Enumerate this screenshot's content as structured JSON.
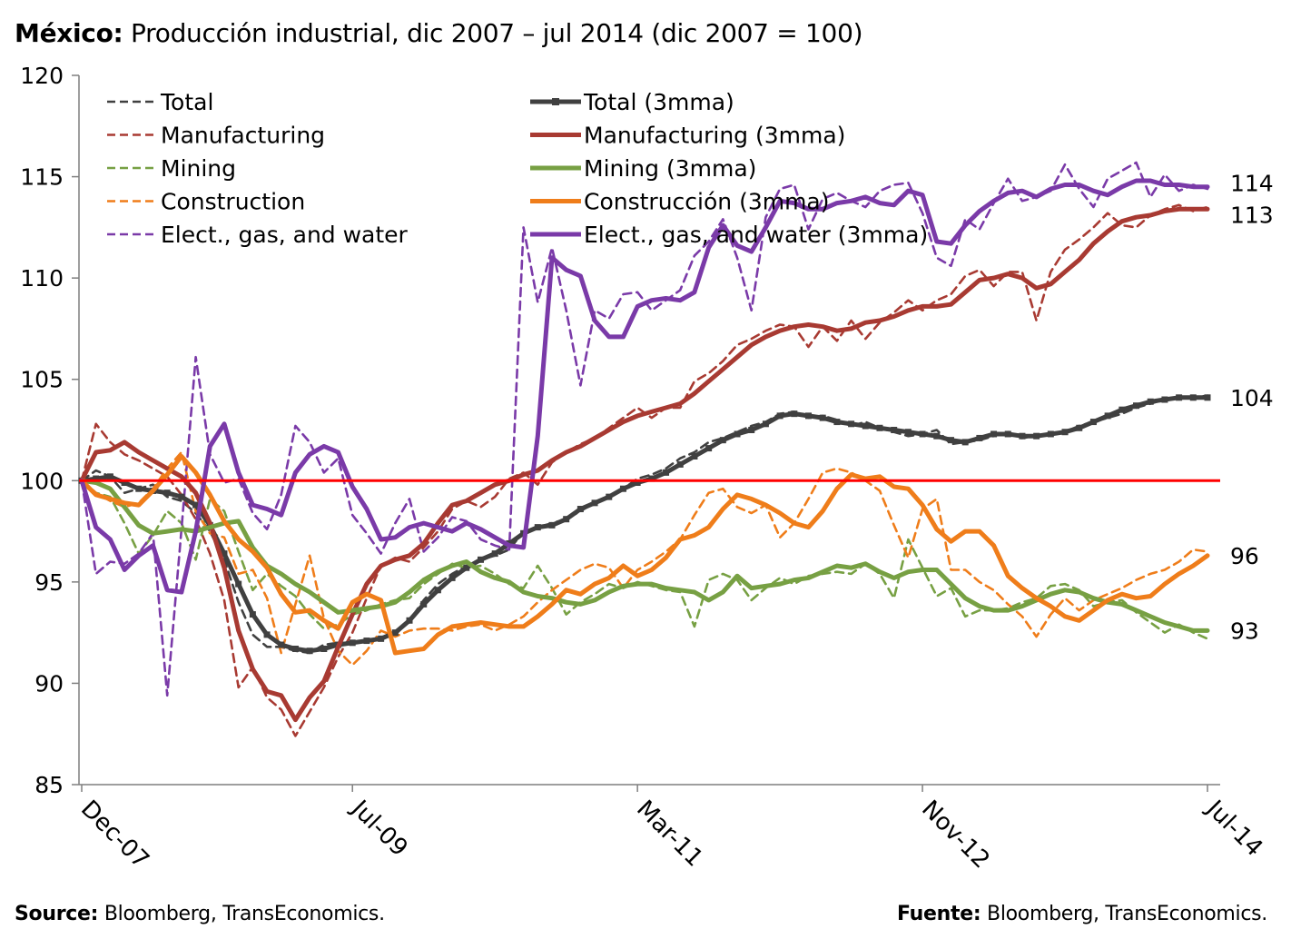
{
  "header": {
    "title_bold": "México:",
    "title_rest": " Producción industrial, dic 2007 – jul 2014 (dic 2007 = 100)"
  },
  "footer": {
    "source_bold": "Source:",
    "source_rest": " Bloomberg, TransEconomics.",
    "fuente_bold": "Fuente:",
    "fuente_rest": " Bloomberg, TransEconomics."
  },
  "chart_data": {
    "type": "line",
    "title": "México: Producción industrial, dic 2007 – jul 2014 (dic 2007 = 100)",
    "xlabel": "",
    "ylabel": "",
    "x_ticks": [
      "Dec-07",
      "Jul-09",
      "Mar-11",
      "Nov-12",
      "Jul-14"
    ],
    "x_tick_index": [
      0,
      19,
      39,
      59,
      79
    ],
    "n_points": 80,
    "ylim": [
      85,
      120
    ],
    "y_ticks": [
      85,
      90,
      95,
      100,
      105,
      110,
      115,
      120
    ],
    "grid": false,
    "legend_position": "top-left",
    "reference_line": {
      "value": 100,
      "color": "#ff0000"
    },
    "end_labels": [
      "114",
      "113",
      "104",
      "96",
      "93"
    ],
    "colors": {
      "total": "#404040",
      "manufacturing": "#a83a32",
      "mining": "#77a043",
      "construction": "#ef7d1a",
      "electricity": "#7a3aa8",
      "axis": "#7f7f7f"
    },
    "series": [
      {
        "name": "Total",
        "style": "dashed",
        "color": "#404040",
        "values": [
          100.0,
          100.5,
          100.2,
          99.4,
          99.6,
          99.8,
          99.2,
          99.0,
          98.4,
          97.5,
          96.1,
          94.0,
          92.4,
          91.8,
          91.8,
          91.6,
          91.5,
          91.9,
          92.0,
          92.0,
          92.1,
          92.2,
          92.4,
          93.1,
          94.1,
          94.9,
          95.4,
          95.8,
          96.1,
          96.3,
          96.6,
          97.5,
          97.7,
          97.9,
          98.1,
          98.5,
          98.9,
          99.2,
          99.6,
          100.1,
          100.3,
          100.6,
          101.1,
          101.4,
          101.9,
          102.1,
          102.4,
          102.7,
          102.9,
          103.3,
          103.4,
          103.1,
          103.2,
          103.0,
          102.7,
          102.9,
          102.6,
          102.4,
          102.2,
          102.3,
          102.5,
          101.8,
          101.9,
          102.0,
          102.2,
          102.4,
          102.1,
          102.2,
          102.3,
          102.4,
          102.7,
          102.9,
          103.1,
          103.3,
          103.6,
          103.8,
          104.0,
          104.1,
          104.1,
          104.2
        ]
      },
      {
        "name": "Total (3mma)",
        "style": "solid-marker",
        "color": "#404040",
        "values": [
          100.0,
          100.1,
          100.2,
          99.9,
          99.6,
          99.5,
          99.4,
          99.2,
          98.8,
          97.8,
          96.4,
          94.9,
          93.4,
          92.4,
          91.9,
          91.7,
          91.6,
          91.7,
          91.9,
          92.0,
          92.1,
          92.2,
          92.5,
          93.1,
          93.9,
          94.6,
          95.2,
          95.7,
          96.1,
          96.4,
          96.9,
          97.4,
          97.7,
          97.8,
          98.1,
          98.6,
          98.9,
          99.2,
          99.6,
          99.9,
          100.1,
          100.4,
          100.8,
          101.2,
          101.6,
          102.0,
          102.3,
          102.5,
          102.8,
          103.2,
          103.3,
          103.2,
          103.1,
          102.9,
          102.8,
          102.7,
          102.6,
          102.5,
          102.4,
          102.3,
          102.2,
          102.0,
          101.9,
          102.1,
          102.3,
          102.3,
          102.2,
          102.2,
          102.3,
          102.4,
          102.6,
          102.9,
          103.2,
          103.5,
          103.7,
          103.9,
          104.0,
          104.1,
          104.1,
          104.1
        ]
      },
      {
        "name": "Manufacturing",
        "style": "dashed",
        "color": "#a83a32",
        "values": [
          100.0,
          102.8,
          101.9,
          101.3,
          101.0,
          100.6,
          100.2,
          99.3,
          98.1,
          96.4,
          94.1,
          89.8,
          90.8,
          89.3,
          88.7,
          87.4,
          88.6,
          89.8,
          91.3,
          92.5,
          94.2,
          95.8,
          96.2,
          96.0,
          96.7,
          97.5,
          98.6,
          99.0,
          98.7,
          99.2,
          100.1,
          100.4,
          99.8,
          100.9,
          101.4,
          101.8,
          102.1,
          102.6,
          103.1,
          103.6,
          103.1,
          103.6,
          103.6,
          104.9,
          105.3,
          105.9,
          106.7,
          107.0,
          107.4,
          107.7,
          107.6,
          106.6,
          107.6,
          106.9,
          107.9,
          107.0,
          107.8,
          108.3,
          108.9,
          108.4,
          108.9,
          109.2,
          110.1,
          110.4,
          109.6,
          110.3,
          110.3,
          107.9,
          110.3,
          111.4,
          111.9,
          112.5,
          113.2,
          112.6,
          112.5,
          113.1,
          113.4,
          113.6,
          113.3,
          113.5
        ]
      },
      {
        "name": "Manufacturing (3mma)",
        "style": "solid",
        "color": "#a83a32",
        "values": [
          100.0,
          101.4,
          101.5,
          101.9,
          101.4,
          101.0,
          100.6,
          100.2,
          99.4,
          97.9,
          95.7,
          92.6,
          90.7,
          89.6,
          89.4,
          88.2,
          89.3,
          90.1,
          91.8,
          93.4,
          94.9,
          95.8,
          96.1,
          96.3,
          96.9,
          97.9,
          98.8,
          99.0,
          99.4,
          99.8,
          100.0,
          100.3,
          100.5,
          101.0,
          101.4,
          101.7,
          102.1,
          102.5,
          102.9,
          103.2,
          103.4,
          103.6,
          103.8,
          104.3,
          104.9,
          105.5,
          106.1,
          106.7,
          107.1,
          107.4,
          107.6,
          107.7,
          107.6,
          107.4,
          107.5,
          107.8,
          107.9,
          108.1,
          108.4,
          108.6,
          108.6,
          108.7,
          109.3,
          109.9,
          110.0,
          110.2,
          110.0,
          109.5,
          109.7,
          110.3,
          110.9,
          111.7,
          112.3,
          112.8,
          113.0,
          113.1,
          113.3,
          113.4,
          113.4,
          113.4
        ]
      },
      {
        "name": "Mining",
        "style": "dashed",
        "color": "#77a043",
        "values": [
          100.0,
          99.4,
          99.2,
          97.9,
          96.4,
          97.3,
          98.5,
          97.9,
          96.1,
          99.1,
          98.5,
          96.5,
          94.6,
          95.4,
          94.8,
          94.3,
          93.4,
          92.7,
          92.9,
          93.4,
          93.6,
          93.9,
          94.1,
          94.2,
          94.9,
          95.4,
          95.9,
          95.7,
          95.8,
          95.4,
          94.9,
          94.7,
          95.8,
          94.7,
          93.4,
          94.0,
          94.4,
          94.9,
          94.7,
          95.0,
          94.8,
          94.6,
          94.5,
          92.8,
          95.1,
          95.4,
          95.1,
          94.1,
          94.7,
          95.2,
          94.9,
          95.3,
          95.4,
          95.5,
          95.4,
          95.9,
          95.4,
          94.2,
          97.1,
          95.7,
          94.3,
          94.7,
          93.3,
          93.6,
          93.6,
          93.7,
          94.0,
          94.2,
          94.8,
          94.9,
          94.6,
          93.8,
          94.0,
          94.1,
          93.5,
          93.0,
          92.5,
          92.9,
          92.5,
          92.2
        ]
      },
      {
        "name": "Mining (3mma)",
        "style": "solid",
        "color": "#77a043",
        "values": [
          100.0,
          99.9,
          99.6,
          98.7,
          97.8,
          97.4,
          97.5,
          97.6,
          97.5,
          97.7,
          97.9,
          98.0,
          96.7,
          95.8,
          95.4,
          94.9,
          94.5,
          94.0,
          93.5,
          93.6,
          93.7,
          93.8,
          94.0,
          94.5,
          95.1,
          95.5,
          95.8,
          96.0,
          95.5,
          95.2,
          95.0,
          94.5,
          94.3,
          94.2,
          94.0,
          93.9,
          94.1,
          94.5,
          94.8,
          94.9,
          94.9,
          94.7,
          94.6,
          94.5,
          94.1,
          94.5,
          95.3,
          94.7,
          94.8,
          94.9,
          95.1,
          95.2,
          95.5,
          95.8,
          95.7,
          95.9,
          95.5,
          95.2,
          95.5,
          95.6,
          95.6,
          94.9,
          94.2,
          93.8,
          93.6,
          93.6,
          93.8,
          94.1,
          94.4,
          94.6,
          94.5,
          94.2,
          94.0,
          93.9,
          93.6,
          93.3,
          93.0,
          92.8,
          92.6,
          92.6
        ]
      },
      {
        "name": "Construction",
        "style": "dashed",
        "color": "#ef7d1a",
        "values": [
          100.0,
          99.4,
          99.0,
          98.7,
          98.9,
          99.6,
          100.6,
          101.4,
          98.5,
          97.4,
          97.2,
          95.4,
          95.6,
          94.2,
          91.5,
          93.9,
          96.3,
          93.2,
          91.6,
          90.9,
          91.6,
          92.6,
          92.3,
          92.6,
          92.7,
          92.7,
          92.6,
          92.8,
          92.9,
          92.6,
          92.9,
          93.3,
          94.0,
          94.6,
          95.1,
          95.6,
          95.9,
          95.7,
          94.7,
          95.6,
          96.0,
          96.5,
          97.1,
          98.3,
          99.4,
          99.6,
          98.7,
          98.4,
          98.8,
          97.2,
          97.9,
          99.1,
          100.4,
          100.6,
          100.4,
          100.0,
          99.5,
          97.8,
          96.2,
          98.6,
          99.1,
          95.6,
          95.6,
          95.0,
          94.6,
          93.9,
          93.3,
          92.3,
          93.4,
          94.2,
          93.6,
          94.1,
          94.4,
          94.7,
          95.1,
          95.4,
          95.6,
          96.0,
          96.6,
          96.5
        ]
      },
      {
        "name": "Construcción (3mma)",
        "style": "solid",
        "color": "#ef7d1a",
        "values": [
          100.0,
          99.3,
          99.1,
          98.9,
          98.8,
          99.5,
          100.3,
          101.2,
          100.4,
          99.3,
          98.0,
          97.1,
          96.5,
          95.7,
          94.4,
          93.5,
          93.6,
          93.1,
          92.7,
          94.0,
          94.4,
          94.1,
          91.5,
          91.6,
          91.7,
          92.4,
          92.8,
          92.9,
          93.0,
          92.9,
          92.8,
          92.8,
          93.3,
          93.9,
          94.6,
          94.4,
          94.9,
          95.2,
          95.8,
          95.3,
          95.6,
          96.2,
          97.1,
          97.3,
          97.7,
          98.6,
          99.3,
          99.1,
          98.8,
          98.4,
          97.9,
          97.7,
          98.5,
          99.6,
          100.3,
          100.1,
          100.2,
          99.7,
          99.6,
          98.8,
          97.6,
          97.0,
          97.5,
          97.5,
          96.8,
          95.3,
          94.7,
          94.2,
          93.8,
          93.3,
          93.1,
          93.6,
          94.1,
          94.4,
          94.2,
          94.3,
          94.9,
          95.4,
          95.8,
          96.3
        ]
      },
      {
        "name": "Elect., gas, and water",
        "style": "dashed",
        "color": "#7a3aa8",
        "values": [
          100.0,
          95.4,
          96.0,
          95.9,
          96.4,
          97.4,
          89.4,
          97.6,
          106.1,
          101.3,
          99.9,
          100.1,
          98.4,
          97.6,
          99.3,
          102.7,
          101.9,
          100.4,
          101.1,
          98.3,
          97.4,
          96.4,
          97.9,
          99.1,
          96.5,
          97.2,
          98.2,
          98.0,
          97.1,
          96.8,
          96.6,
          112.5,
          108.8,
          111.5,
          108.4,
          104.7,
          108.4,
          108.0,
          109.2,
          109.3,
          108.4,
          108.9,
          109.4,
          111.1,
          111.8,
          112.9,
          111.0,
          108.4,
          113.0,
          114.4,
          114.6,
          112.4,
          113.9,
          114.2,
          113.8,
          113.5,
          114.3,
          114.6,
          114.7,
          113.2,
          111.0,
          110.6,
          112.9,
          112.4,
          113.7,
          114.9,
          113.8,
          114.0,
          114.3,
          115.6,
          114.4,
          113.5,
          114.9,
          115.3,
          115.7,
          114.0,
          115.1,
          114.3,
          114.6,
          114.4
        ]
      },
      {
        "name": "Elect., gas, and water (3mma)",
        "style": "solid",
        "color": "#7a3aa8",
        "values": [
          100.0,
          97.7,
          97.1,
          95.6,
          96.3,
          96.8,
          94.6,
          94.5,
          97.5,
          101.7,
          102.8,
          100.4,
          98.8,
          98.6,
          98.3,
          100.4,
          101.3,
          101.7,
          101.4,
          99.7,
          98.6,
          97.1,
          97.2,
          97.7,
          97.9,
          97.7,
          97.5,
          97.9,
          97.6,
          97.2,
          96.8,
          96.7,
          102.2,
          111.0,
          110.4,
          110.1,
          107.9,
          107.1,
          107.1,
          108.6,
          108.9,
          109.0,
          108.9,
          109.3,
          111.5,
          112.6,
          111.6,
          111.3,
          112.5,
          113.8,
          113.7,
          113.4,
          113.4,
          113.7,
          113.8,
          114.0,
          113.7,
          113.6,
          114.3,
          114.1,
          111.8,
          111.7,
          112.6,
          113.3,
          113.8,
          114.2,
          114.3,
          114.0,
          114.4,
          114.6,
          114.6,
          114.3,
          114.1,
          114.5,
          114.8,
          114.8,
          114.6,
          114.6,
          114.5,
          114.5
        ]
      }
    ]
  }
}
